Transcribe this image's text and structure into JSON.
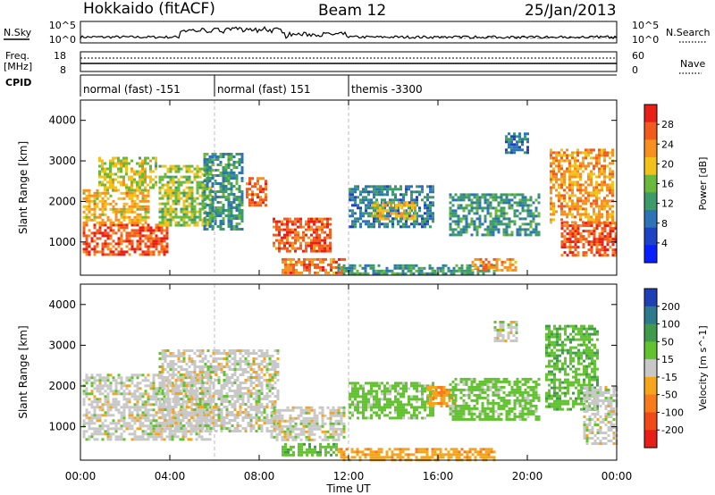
{
  "header": {
    "station": "Hokkaido (fitACF)",
    "beam": "Beam 12",
    "date": "25/Jan/2013"
  },
  "side_labels": {
    "nsky": "N.Sky",
    "nsearch": "N.Search",
    "freq_line1": "Freq.",
    "freq_line2": "[MHz]",
    "nave": "Nave",
    "cpid": "CPID"
  },
  "noise_axis": {
    "left_top": "10^5",
    "left_bottom": "10^0",
    "right_top": "10^5",
    "right_bottom": "10^0"
  },
  "freq_axis": {
    "left_top": "18",
    "left_bottom": "8",
    "right_top": "60",
    "right_bottom": "0"
  },
  "cpid_segments": [
    {
      "label": "normal (fast) -151",
      "start_hour": 0,
      "end_hour": 6
    },
    {
      "label": "normal (fast) 151",
      "start_hour": 6,
      "end_hour": 12
    },
    {
      "label": "themis -3300",
      "start_hour": 12,
      "end_hour": 24
    }
  ],
  "x_axis": {
    "label": "Time UT",
    "ticks": [
      "00:00",
      "04:00",
      "08:00",
      "12:00",
      "16:00",
      "20:00",
      "00:00"
    ],
    "range_hours": [
      0,
      24
    ]
  },
  "chart_data": [
    {
      "type": "heatmap",
      "parameter": "power",
      "ylabel": "Slant Range [km]",
      "yticks": [
        1000,
        2000,
        3000,
        4000
      ],
      "ylim": [
        180,
        4500
      ],
      "colorbar": {
        "label": "Power [dB]",
        "ticks": [
          4,
          8,
          12,
          16,
          20,
          24,
          28
        ],
        "range": [
          0,
          32
        ],
        "colors": [
          "#0a1fff",
          "#1f43c8",
          "#2c74b5",
          "#3c9a6b",
          "#6ab93c",
          "#f2c21a",
          "#f79020",
          "#f25a1e",
          "#e81f17"
        ]
      },
      "regions": [
        {
          "t0": 0.1,
          "t1": 3.9,
          "r0": 700,
          "r1": 1450,
          "value": 27
        },
        {
          "t0": 0.1,
          "t1": 3.0,
          "r0": 1450,
          "r1": 2300,
          "value": 21
        },
        {
          "t0": 0.8,
          "t1": 3.4,
          "r0": 2300,
          "r1": 3100,
          "value": 18
        },
        {
          "t0": 3.5,
          "t1": 5.8,
          "r0": 1400,
          "r1": 2900,
          "value": 17
        },
        {
          "t0": 5.5,
          "t1": 7.3,
          "r0": 1300,
          "r1": 3200,
          "value": 12
        },
        {
          "t0": 7.4,
          "t1": 8.3,
          "r0": 1900,
          "r1": 2600,
          "value": 26
        },
        {
          "t0": 8.6,
          "t1": 11.2,
          "r0": 800,
          "r1": 1600,
          "value": 27
        },
        {
          "t0": 9.0,
          "t1": 11.8,
          "r0": 250,
          "r1": 600,
          "value": 25
        },
        {
          "t0": 11.5,
          "t1": 18.5,
          "r0": 200,
          "r1": 450,
          "value": 12
        },
        {
          "t0": 12.0,
          "t1": 15.8,
          "r0": 1350,
          "r1": 2400,
          "value": 10
        },
        {
          "t0": 13.0,
          "t1": 15.0,
          "r0": 1600,
          "r1": 2000,
          "value": 20
        },
        {
          "t0": 16.5,
          "t1": 20.5,
          "r0": 1200,
          "r1": 2200,
          "value": 12
        },
        {
          "t0": 17.5,
          "t1": 19.5,
          "r0": 300,
          "r1": 600,
          "value": 23
        },
        {
          "t0": 19.0,
          "t1": 20.0,
          "r0": 3200,
          "r1": 3700,
          "value": 9
        },
        {
          "t0": 21.5,
          "t1": 24.0,
          "r0": 700,
          "r1": 1500,
          "value": 27
        },
        {
          "t0": 21.0,
          "t1": 23.8,
          "r0": 1500,
          "r1": 3300,
          "value": 23
        }
      ]
    },
    {
      "type": "heatmap",
      "parameter": "velocity",
      "ylabel": "Slant Range [km]",
      "yticks": [
        1000,
        2000,
        3000,
        4000
      ],
      "ylim": [
        180,
        4500
      ],
      "colorbar": {
        "label": "Velocity [m s^-1]",
        "ticks": [
          200,
          100,
          50,
          15,
          -15,
          -50,
          -100,
          -200
        ],
        "colors": [
          "#1f3fb4",
          "#2c7a8c",
          "#3f9a4c",
          "#62c230",
          "#c8c8c8",
          "#f4a51c",
          "#f77b1d",
          "#f04a1b",
          "#e81f17"
        ]
      },
      "regions": [
        {
          "t0": 0.1,
          "t1": 5.8,
          "r0": 700,
          "r1": 2300,
          "value": 0
        },
        {
          "t0": 3.5,
          "t1": 8.8,
          "r0": 900,
          "r1": 2900,
          "value": 0
        },
        {
          "t0": 8.5,
          "t1": 11.8,
          "r0": 650,
          "r1": 1500,
          "value": 0
        },
        {
          "t0": 9.0,
          "t1": 11.5,
          "r0": 280,
          "r1": 600,
          "value": 35
        },
        {
          "t0": 11.5,
          "t1": 18.5,
          "r0": 200,
          "r1": 480,
          "value": -35
        },
        {
          "t0": 12.0,
          "t1": 15.8,
          "r0": 1200,
          "r1": 2100,
          "value": 30
        },
        {
          "t0": 15.5,
          "t1": 16.8,
          "r0": 1500,
          "r1": 2000,
          "value": -40
        },
        {
          "t0": 16.5,
          "t1": 20.5,
          "r0": 1200,
          "r1": 2200,
          "value": 30
        },
        {
          "t0": 18.5,
          "t1": 19.5,
          "r0": 3100,
          "r1": 3600,
          "value": 0
        },
        {
          "t0": 20.8,
          "t1": 23.2,
          "r0": 1400,
          "r1": 3500,
          "value": 40
        },
        {
          "t0": 22.5,
          "t1": 24.0,
          "r0": 600,
          "r1": 2000,
          "value": 0
        }
      ]
    }
  ]
}
